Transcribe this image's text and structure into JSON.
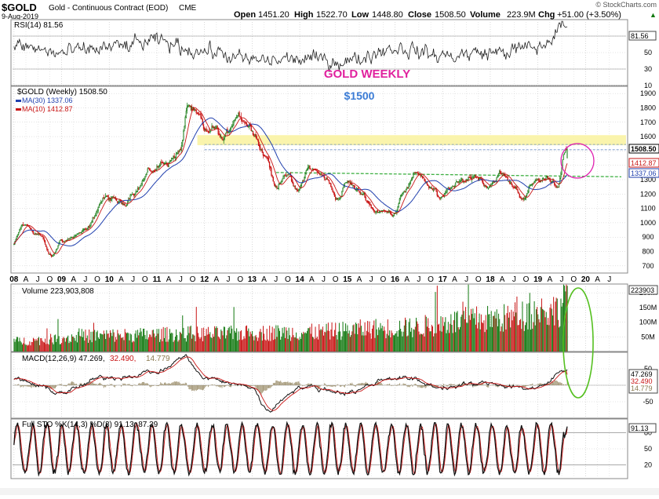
{
  "header": {
    "symbol": "$GOLD",
    "name": "Gold - Continuous Contract (EOD)",
    "exchange": "CME",
    "date": "9-Aug-2019",
    "open_label": "Open",
    "open": "1451.20",
    "high_label": "High",
    "high": "1522.70",
    "low_label": "Low",
    "low": "1448.80",
    "close_label": "Close",
    "close": "1508.50",
    "volume_label": "Volume",
    "volume": "223.9M",
    "chg_label": "Chg",
    "chg": "+51.00 (+3.50%)",
    "watermark": "© StockCharts.com",
    "trend_arrow": "▲"
  },
  "annotations": {
    "title": "GOLD WEEKLY",
    "level": "$1500",
    "title_color": "#e0219e",
    "level_color": "#3a7bd5"
  },
  "colors": {
    "up": "#11780f",
    "down": "#c81414",
    "ma30": "#1f3fae",
    "ma10": "#c81414",
    "band": "#faf3a8",
    "trend": "#3fb043",
    "circle_pink": "#e020b0",
    "ellipse_green": "#55c020",
    "grid": "#c8c8c8",
    "line": "#222222"
  },
  "panels": {
    "rsi": {
      "label": "RSI(14) 81.56",
      "current": "81.56"
    },
    "price": {
      "legend_main": "$GOLD (Weekly) 1508.50",
      "legend_ma30": "MA(30) 1337.06",
      "legend_ma10": "MA(10) 1412.87",
      "tag_close": "1508.50",
      "tag_ma10": "1412.87",
      "tag_ma30": "1337.06"
    },
    "volume": {
      "label": "Volume 223,903,808",
      "current": "223903"
    },
    "macd": {
      "label_main": "MACD(12,26,9) 47.269,",
      "label_signal": " 32.490,",
      "label_hist": " 14.779",
      "tag1": "47.269",
      "tag2": "32.490",
      "tag3": "14.779"
    },
    "sto": {
      "label": "Full STO %K(14,3) %D(3) 91.13, 87.39",
      "current": "91.13"
    }
  },
  "chart_data": [
    {
      "type": "line",
      "name": "RSI(14)",
      "ylim": [
        10,
        90
      ],
      "y_ticks": [
        10,
        30,
        50,
        70
      ],
      "guides": [
        30,
        70
      ],
      "x": [
        "2008",
        "2009",
        "2010",
        "2011",
        "2012",
        "2013",
        "2014",
        "2015",
        "2016",
        "2017",
        "2018",
        "2019",
        "2019-Aug"
      ],
      "values": [
        58,
        49,
        56,
        63,
        52,
        40,
        42,
        40,
        56,
        46,
        50,
        56,
        82
      ]
    },
    {
      "type": "candlestick",
      "name": "$GOLD (Weekly)",
      "ylim": [
        650,
        1950
      ],
      "y_ticks": [
        700,
        800,
        900,
        1000,
        1100,
        1200,
        1300,
        1400,
        1500,
        1600,
        1700,
        1800,
        1900
      ],
      "x_ticks": [
        "08",
        "A",
        "J",
        "O",
        "09",
        "A",
        "J",
        "O",
        "10",
        "A",
        "J",
        "O",
        "11",
        "A",
        "J",
        "O",
        "12",
        "A",
        "J",
        "O",
        "13",
        "A",
        "J",
        "O",
        "14",
        "A",
        "J",
        "O",
        "15",
        "A",
        "J",
        "O",
        "16",
        "A",
        "J",
        "O",
        "17",
        "A",
        "J",
        "O",
        "18",
        "A",
        "J",
        "O",
        "19",
        "A",
        "J",
        "O",
        "20",
        "A",
        "J"
      ],
      "anchors": [
        [
          "2007.97",
          845
        ],
        [
          "2008.2",
          980
        ],
        [
          "2008.5",
          930
        ],
        [
          "2008.8",
          760
        ],
        [
          "2009.0",
          880
        ],
        [
          "2009.5",
          935
        ],
        [
          "2009.9",
          1170
        ],
        [
          "2010.3",
          1130
        ],
        [
          "2010.5",
          1230
        ],
        [
          "2010.9",
          1360
        ],
        [
          "2011.2",
          1430
        ],
        [
          "2011.5",
          1500
        ],
        [
          "2011.65",
          1820
        ],
        [
          "2011.9",
          1710
        ],
        [
          "2012.0",
          1600
        ],
        [
          "2012.2",
          1650
        ],
        [
          "2012.4",
          1570
        ],
        [
          "2012.7",
          1770
        ],
        [
          "2013.0",
          1670
        ],
        [
          "2013.3",
          1470
        ],
        [
          "2013.5",
          1240
        ],
        [
          "2013.7",
          1360
        ],
        [
          "2013.95",
          1210
        ],
        [
          "2014.2",
          1380
        ],
        [
          "2014.5",
          1320
        ],
        [
          "2014.8",
          1180
        ],
        [
          "2015.0",
          1280
        ],
        [
          "2015.3",
          1200
        ],
        [
          "2015.6",
          1090
        ],
        [
          "2015.95",
          1065
        ],
        [
          "2016.2",
          1250
        ],
        [
          "2016.5",
          1340
        ],
        [
          "2016.8",
          1240
        ],
        [
          "2016.95",
          1150
        ],
        [
          "2017.2",
          1250
        ],
        [
          "2017.7",
          1330
        ],
        [
          "2017.95",
          1270
        ],
        [
          "2018.2",
          1340
        ],
        [
          "2018.5",
          1250
        ],
        [
          "2018.65",
          1185
        ],
        [
          "2019.0",
          1290
        ],
        [
          "2019.2",
          1310
        ],
        [
          "2019.4",
          1280
        ],
        [
          "2019.6",
          1508
        ]
      ],
      "ma30_last": 1337.06,
      "ma10_last": 1412.87,
      "band": [
        1540,
        1610
      ],
      "dashed_levels": [
        1508.5,
        1545
      ],
      "trendline": [
        [
          "2013.5",
          1350
        ],
        [
          "2019.6",
          1320
        ]
      ]
    },
    {
      "type": "bar",
      "name": "Volume",
      "ylim": [
        0,
        230
      ],
      "y_ticks": [
        "50M",
        "100M",
        "150M",
        "200M"
      ],
      "y_tick_values": [
        50,
        100,
        150,
        200
      ],
      "trend": [
        [
          "2008",
          35
        ],
        [
          "2010",
          55
        ],
        [
          "2012",
          60
        ],
        [
          "2014",
          65
        ],
        [
          "2016",
          80
        ],
        [
          "2018",
          110
        ],
        [
          "2019.4",
          140
        ],
        [
          "2019.6",
          215
        ]
      ]
    },
    {
      "type": "line",
      "name": "MACD(12,26,9)",
      "ylim": [
        -100,
        100
      ],
      "y_ticks": [
        -50,
        0,
        50
      ],
      "x": [
        "2008",
        "2009",
        "2010",
        "2011",
        "2011.6",
        "2012",
        "2013",
        "2013.3",
        "2014",
        "2015",
        "2016",
        "2017",
        "2018",
        "2019",
        "2019.6"
      ],
      "values": [
        15,
        -20,
        25,
        40,
        85,
        20,
        -5,
        -75,
        -5,
        -20,
        25,
        -5,
        5,
        -10,
        47.3
      ],
      "signal_last": 32.49,
      "hist_last": 14.78
    },
    {
      "type": "line",
      "name": "Full STO %K(14,3) %D(3)",
      "ylim": [
        0,
        100
      ],
      "y_ticks": [
        20,
        50,
        80
      ],
      "guides": [
        20,
        80
      ],
      "k_last": 91.13,
      "d_last": 87.39
    }
  ]
}
